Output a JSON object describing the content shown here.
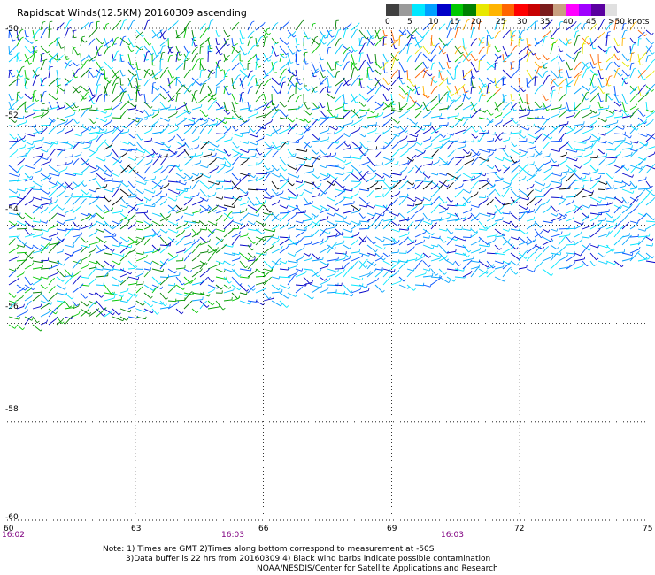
{
  "title": "Rapidscat Winds(12.5KM) 20160309 ascending",
  "legend": {
    "labels": [
      "0",
      "5",
      "10",
      "15",
      "20",
      "25",
      "30",
      "35",
      "40",
      "45",
      ">50 knots"
    ],
    "colors": [
      "#404040",
      "#9a9a9a",
      "#00e8ff",
      "#00a0ff",
      "#0000c8",
      "#00c800",
      "#008000",
      "#e8e800",
      "#ffb400",
      "#ff6400",
      "#ff0000",
      "#c80000",
      "#7a1c1c",
      "#c8a080",
      "#ff00ff",
      "#a000ff",
      "#5a00a0",
      "#e0e0e0",
      "#ffffff",
      "#ffffff"
    ]
  },
  "lat_labels": [
    "-50",
    "-52",
    "-54",
    "-56",
    "-58",
    "-60"
  ],
  "lon_labels": [
    "60",
    "63",
    "66",
    "69",
    "72",
    "75"
  ],
  "time_labels": [
    "16:02",
    "16:03",
    "16:03"
  ],
  "notes": {
    "line1": "Note: 1) Times are GMT 2)Times along bottom correspond to measurement at -50S",
    "line2": "3)Data buffer is 22 hrs from 20160309 4) Black wind barbs indicate possible contamination",
    "line3": "NOAA/NESDIS/Center for Satellite Applications and Research"
  }
}
